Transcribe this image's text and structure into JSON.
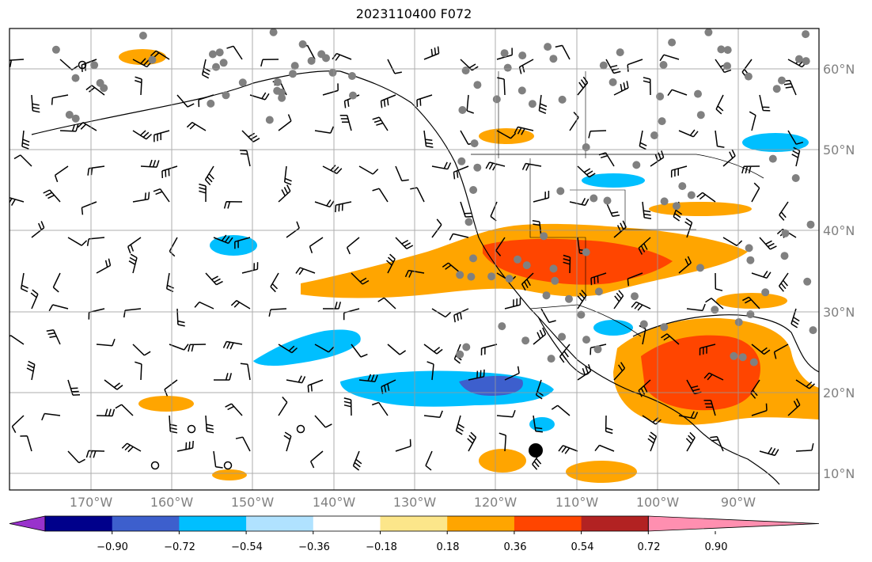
{
  "title": "2023110400 F072",
  "map": {
    "projection": "lat-lon",
    "lon_range": [
      -180,
      -80
    ],
    "lat_range": [
      8,
      65
    ],
    "gridlines": true,
    "latitude_labels": [
      "60°N",
      "50°N",
      "40°N",
      "30°N",
      "20°N",
      "10°N"
    ],
    "longitude_labels": [
      "170°W",
      "160°W",
      "150°W",
      "140°W",
      "130°W",
      "120°W",
      "110°W",
      "100°W",
      "90°W"
    ],
    "overlays": [
      "wind-barbs",
      "station-dots",
      "filled-contours",
      "coastlines",
      "state-borders"
    ]
  },
  "colorbar": {
    "ticks": [
      "−0.90",
      "−0.72",
      "−0.54",
      "−0.36",
      "−0.18",
      "0.18",
      "0.36",
      "0.54",
      "0.72",
      "0.90"
    ],
    "colors": [
      "#9932cc",
      "#00008b",
      "#3d5fcd",
      "#00bfff",
      "#b0e2ff",
      "#ffffff",
      "#fce68a",
      "#ffa500",
      "#ff4500",
      "#b22222",
      "#ff8fb0"
    ],
    "extend": "both"
  }
}
